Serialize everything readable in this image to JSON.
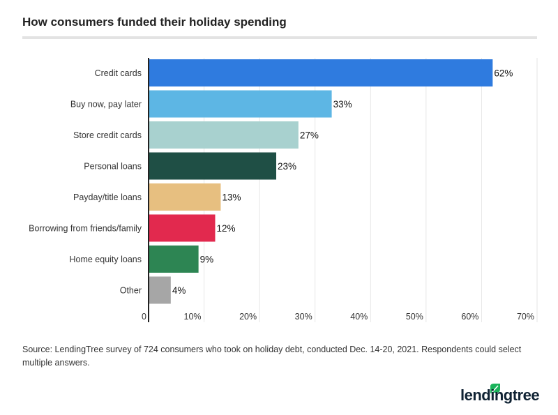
{
  "chart_data": {
    "type": "bar",
    "orientation": "horizontal",
    "title": "How consumers funded their holiday spending",
    "categories": [
      "Credit cards",
      "Buy now, pay later",
      "Store credit cards",
      "Personal loans",
      "Payday/title loans",
      "Borrowing from friends/family",
      "Home equity loans",
      "Other"
    ],
    "values": [
      62,
      33,
      27,
      23,
      13,
      12,
      9,
      4
    ],
    "data_labels": [
      "62%",
      "33%",
      "27%",
      "23%",
      "13%",
      "12%",
      "9%",
      "4%"
    ],
    "colors": [
      "#2f7bdf",
      "#5db6e4",
      "#a8d1cf",
      "#1f4f45",
      "#e7bf80",
      "#e2294e",
      "#2d8553",
      "#a6a6a6"
    ],
    "xlim": [
      0,
      70
    ],
    "xticks": [
      "0",
      "10%",
      "20%",
      "30%",
      "40%",
      "50%",
      "60%",
      "70%"
    ],
    "grid": true,
    "xlabel": "",
    "ylabel": ""
  },
  "source": "Source: LendingTree survey of 724 consumers who took on holiday debt, conducted Dec. 14-20, 2021. Respondents could select multiple answers.",
  "logo": "lendingtree"
}
